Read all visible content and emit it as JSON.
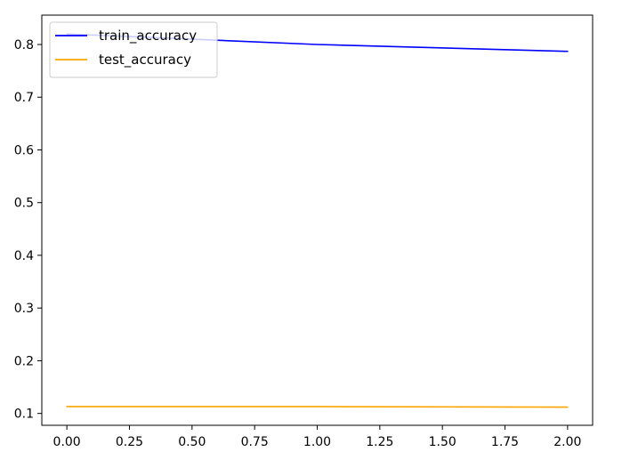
{
  "chart_data": {
    "type": "line",
    "title": "",
    "xlabel": "",
    "ylabel": "",
    "x": [
      0,
      1,
      2
    ],
    "xlim": [
      -0.1,
      2.1
    ],
    "ylim": [
      0.0775,
      0.8557
    ],
    "xticks": [
      "0.00",
      "0.25",
      "0.50",
      "0.75",
      "1.00",
      "1.25",
      "1.50",
      "1.75",
      "2.00"
    ],
    "yticks": [
      "0.1",
      "0.2",
      "0.3",
      "0.4",
      "0.5",
      "0.6",
      "0.7",
      "0.8"
    ],
    "grid": false,
    "legend_position": "top-left",
    "series": [
      {
        "name": "train_accuracy",
        "color": "#0000ff",
        "values": [
          0.82,
          0.8,
          0.787
        ]
      },
      {
        "name": "test_accuracy",
        "color": "#ffa500",
        "values": [
          0.113,
          0.113,
          0.112
        ]
      }
    ]
  }
}
